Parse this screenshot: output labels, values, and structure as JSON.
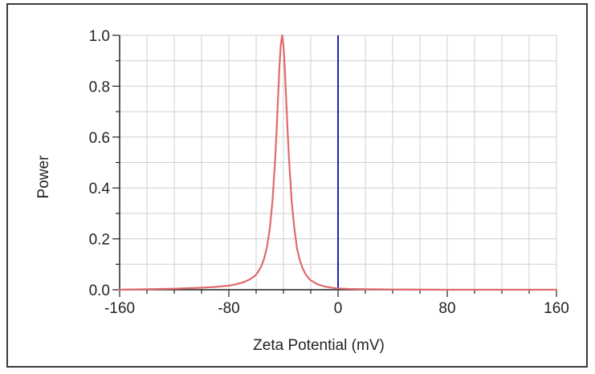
{
  "chart_data": {
    "type": "line",
    "title": "",
    "xlabel": "Zeta Potential (mV)",
    "ylabel": "Power",
    "xlim": [
      -160,
      160
    ],
    "ylim": [
      0,
      1
    ],
    "x_ticks": [
      -160,
      -80,
      0,
      80,
      160
    ],
    "x_tick_labels": [
      "-160",
      "-80",
      "0",
      "80",
      "160"
    ],
    "y_ticks": [
      0,
      0.2,
      0.4,
      0.6,
      0.8,
      1.0
    ],
    "y_tick_labels": [
      "0.0",
      "0.2",
      "0.4",
      "0.6",
      "0.8",
      "1.0"
    ],
    "grid": true,
    "series": [
      {
        "color": "#e06a6a",
        "x": [
          -160,
          -140,
          -120,
          -100,
          -90,
          -80,
          -75,
          -70,
          -65,
          -62,
          -60,
          -58,
          -56,
          -54,
          -52,
          -50,
          -48,
          -46,
          -45,
          -44,
          -43,
          -42,
          -41,
          -40,
          -39,
          -38,
          -37,
          -36,
          -34,
          -32,
          -30,
          -28,
          -26,
          -24,
          -22,
          -20,
          -15,
          -10,
          -5,
          0,
          10,
          20,
          40,
          80,
          120,
          160
        ],
        "y": [
          0.0,
          0.002,
          0.004,
          0.008,
          0.011,
          0.016,
          0.021,
          0.028,
          0.04,
          0.05,
          0.06,
          0.075,
          0.095,
          0.125,
          0.17,
          0.24,
          0.35,
          0.52,
          0.63,
          0.75,
          0.87,
          0.96,
          1.0,
          0.96,
          0.87,
          0.75,
          0.63,
          0.52,
          0.35,
          0.24,
          0.16,
          0.115,
          0.085,
          0.063,
          0.048,
          0.037,
          0.021,
          0.013,
          0.008,
          0.005,
          0.003,
          0.002,
          0.001,
          0.0,
          0.0,
          0.0
        ]
      }
    ],
    "reference_lines": [
      {
        "orientation": "vertical",
        "x": 0,
        "color": "#1f1fb8"
      }
    ],
    "colors": {
      "grid": "#cfcfcf",
      "axis": "#222222",
      "frame": "#3a3a3a"
    }
  }
}
